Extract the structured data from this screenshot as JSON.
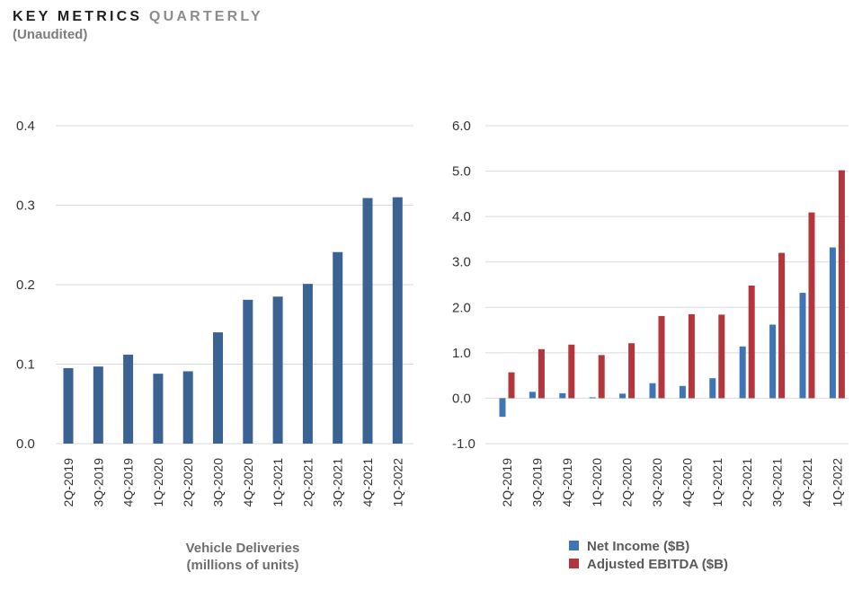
{
  "header": {
    "title_main": "KEY METRICS",
    "title_accent": "QUARTERLY",
    "subtitle": "(Unaudited)"
  },
  "colors": {
    "deliveries_bar": "#3a6394",
    "net_income": "#3f74b5",
    "ebitda": "#b2363b",
    "gridline": "#d9d9d9"
  },
  "chart_data": [
    {
      "type": "bar",
      "caption_line1": "Vehicle Deliveries",
      "caption_line2": "(millions of units)",
      "categories": [
        "2Q-2019",
        "3Q-2019",
        "4Q-2019",
        "1Q-2020",
        "2Q-2020",
        "3Q-2020",
        "4Q-2020",
        "1Q-2021",
        "2Q-2021",
        "3Q-2021",
        "4Q-2021",
        "1Q-2022"
      ],
      "values": [
        0.095,
        0.097,
        0.112,
        0.088,
        0.091,
        0.14,
        0.181,
        0.185,
        0.201,
        0.241,
        0.309,
        0.31
      ],
      "ylim": [
        0,
        0.4
      ],
      "yticks": [
        "0.0",
        "0.1",
        "0.2",
        "0.3",
        "0.4"
      ],
      "grid": true
    },
    {
      "type": "bar",
      "categories": [
        "2Q-2019",
        "3Q-2019",
        "4Q-2019",
        "1Q-2020",
        "2Q-2020",
        "3Q-2020",
        "4Q-2020",
        "1Q-2021",
        "2Q-2021",
        "3Q-2021",
        "4Q-2021",
        "1Q-2022"
      ],
      "series": [
        {
          "name": "Net Income ($B)",
          "values": [
            -0.41,
            0.14,
            0.11,
            0.02,
            0.1,
            0.33,
            0.27,
            0.44,
            1.14,
            1.62,
            2.32,
            3.32
          ]
        },
        {
          "name": "Adjusted EBITDA ($B)",
          "values": [
            0.57,
            1.08,
            1.18,
            0.95,
            1.21,
            1.81,
            1.85,
            1.84,
            2.48,
            3.2,
            4.09,
            5.02
          ]
        }
      ],
      "ylim": [
        -1.0,
        6.0
      ],
      "yticks": [
        "-1.0",
        "0.0",
        "1.0",
        "2.0",
        "3.0",
        "4.0",
        "5.0",
        "6.0"
      ],
      "legend": "bottom",
      "grid": true
    }
  ]
}
